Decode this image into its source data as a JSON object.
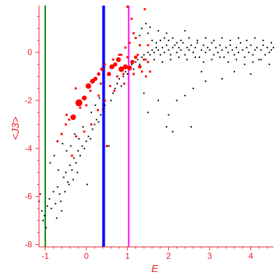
{
  "chart_data": {
    "type": "scatter",
    "xlabel": "E",
    "ylabel": "<J3>",
    "xlim": [
      -1.15,
      4.55
    ],
    "ylim": [
      -8.1,
      1.95
    ],
    "xticks": [
      -1,
      0,
      1,
      2,
      3,
      4
    ],
    "yticks": [
      -8,
      -6,
      -4,
      -2,
      0
    ],
    "grid": false,
    "colors": {
      "axis": "#e8222a",
      "black_points": "#000000",
      "red_points": "#ff0000",
      "line_green": "#008000",
      "line_blue": "#0000ff",
      "line_magenta": "#ff00ff"
    },
    "vertical_lines": [
      {
        "x": -1.0,
        "color": "#008000",
        "weight": "thin"
      },
      {
        "x": 0.42,
        "color": "#0000ff",
        "weight": "thick"
      },
      {
        "x": 1.03,
        "color": "#ff00ff",
        "weight": "thin"
      }
    ],
    "series": [
      {
        "points": [
          [
            -1.15,
            -6.2
          ],
          [
            -1.12,
            -5.9
          ],
          [
            -1.08,
            -6.6
          ],
          [
            -1.05,
            -7.0
          ],
          [
            -0.98,
            -7.3
          ],
          [
            -1.02,
            -6.8
          ],
          [
            -0.95,
            -6.4
          ],
          [
            -0.9,
            -6.1
          ],
          [
            -0.85,
            -6.5
          ],
          [
            -0.8,
            -5.8
          ],
          [
            -0.75,
            -6.3
          ],
          [
            -0.7,
            -5.6
          ],
          [
            -0.65,
            -5.9
          ],
          [
            -0.6,
            -6.6
          ],
          [
            -0.55,
            -5.2
          ],
          [
            -0.5,
            -5.0
          ],
          [
            -0.45,
            -5.4
          ],
          [
            -0.4,
            -4.7
          ],
          [
            -0.35,
            -4.9
          ],
          [
            -0.3,
            -4.4
          ],
          [
            -0.25,
            -4.6
          ],
          [
            -0.2,
            -4.1
          ],
          [
            -0.15,
            -4.3
          ],
          [
            -0.1,
            -3.9
          ],
          [
            -0.05,
            -4.0
          ],
          [
            0.0,
            -3.7
          ],
          [
            0.05,
            -3.5
          ],
          [
            0.1,
            -3.6
          ],
          [
            0.15,
            -3.2
          ],
          [
            0.2,
            -3.0
          ],
          [
            0.25,
            -2.8
          ],
          [
            0.3,
            -2.9
          ],
          [
            0.35,
            -2.6
          ],
          [
            0.4,
            -2.4
          ],
          [
            0.45,
            -2.2
          ],
          [
            -0.88,
            -4.6
          ],
          [
            -0.78,
            -4.3
          ],
          [
            -0.68,
            -4.9
          ],
          [
            -0.58,
            -3.8
          ],
          [
            -0.48,
            -4.1
          ],
          [
            -0.38,
            -3.9
          ],
          [
            -0.28,
            -3.4
          ],
          [
            -0.18,
            -3.6
          ],
          [
            -0.08,
            -3.1
          ],
          [
            0.02,
            -5.5
          ],
          [
            0.12,
            -2.5
          ],
          [
            0.22,
            -2.2
          ],
          [
            0.32,
            -1.9
          ],
          [
            -0.72,
            -6.9
          ],
          [
            -0.62,
            -6.2
          ],
          [
            -0.52,
            -5.8
          ],
          [
            -0.42,
            -5.5
          ],
          [
            -0.32,
            -5.3
          ],
          [
            -0.22,
            -5.0
          ],
          [
            0.55,
            -3.9
          ],
          [
            0.6,
            -2.0
          ],
          [
            0.65,
            -1.7
          ],
          [
            0.7,
            -1.5
          ],
          [
            0.75,
            -1.3
          ],
          [
            0.8,
            -1.1
          ],
          [
            0.85,
            -1.4
          ],
          [
            0.9,
            -1.0
          ],
          [
            0.95,
            -0.8
          ],
          [
            1.0,
            -0.9
          ],
          [
            1.05,
            -0.6
          ],
          [
            1.1,
            -0.5
          ],
          [
            1.15,
            -0.7
          ],
          [
            1.2,
            -0.4
          ],
          [
            1.25,
            -0.3
          ],
          [
            1.3,
            -0.5
          ],
          [
            1.35,
            -0.2
          ],
          [
            1.4,
            -0.1
          ],
          [
            1.45,
            -0.3
          ],
          [
            1.5,
            0.0
          ],
          [
            1.55,
            -0.1
          ],
          [
            1.6,
            0.1
          ],
          [
            1.65,
            0.0
          ],
          [
            1.7,
            0.2
          ],
          [
            1.75,
            0.1
          ],
          [
            1.8,
            -0.1
          ],
          [
            1.85,
            0.2
          ],
          [
            1.9,
            0.0
          ],
          [
            1.95,
            0.3
          ],
          [
            2.0,
            0.1
          ],
          [
            2.05,
            -0.1
          ],
          [
            2.1,
            0.2
          ],
          [
            2.15,
            0.3
          ],
          [
            2.2,
            0.0
          ],
          [
            2.25,
            0.2
          ],
          [
            2.3,
            0.1
          ],
          [
            2.35,
            0.4
          ],
          [
            2.4,
            -0.1
          ],
          [
            2.45,
            0.2
          ],
          [
            2.5,
            0.1
          ],
          [
            2.55,
            0.3
          ],
          [
            2.6,
            0.0
          ],
          [
            2.65,
            0.2
          ],
          [
            2.7,
            0.4
          ],
          [
            2.75,
            -0.2
          ],
          [
            2.8,
            0.1
          ],
          [
            2.85,
            0.3
          ],
          [
            2.9,
            0.0
          ],
          [
            2.95,
            0.2
          ],
          [
            3.0,
            0.1
          ],
          [
            3.05,
            0.4
          ],
          [
            3.1,
            -0.1
          ],
          [
            3.15,
            0.2
          ],
          [
            3.2,
            0.0
          ],
          [
            3.25,
            0.3
          ],
          [
            3.3,
            0.1
          ],
          [
            3.35,
            -0.2
          ],
          [
            3.4,
            0.2
          ],
          [
            3.45,
            0.0
          ],
          [
            3.5,
            0.3
          ],
          [
            3.55,
            0.1
          ],
          [
            3.6,
            -0.1
          ],
          [
            3.65,
            0.2
          ],
          [
            3.7,
            0.0
          ],
          [
            3.75,
            0.4
          ],
          [
            3.8,
            0.1
          ],
          [
            3.85,
            -0.2
          ],
          [
            3.9,
            0.2
          ],
          [
            3.95,
            0.0
          ],
          [
            4.0,
            0.3
          ],
          [
            4.05,
            -0.1
          ],
          [
            4.1,
            0.1
          ],
          [
            4.15,
            0.2
          ],
          [
            4.2,
            -0.3
          ],
          [
            4.25,
            0.1
          ],
          [
            4.3,
            0.3
          ],
          [
            4.35,
            -0.1
          ],
          [
            4.4,
            0.2
          ],
          [
            4.45,
            0.0
          ],
          [
            4.5,
            0.1
          ],
          [
            4.55,
            0.2
          ],
          [
            1.6,
            0.5
          ],
          [
            1.7,
            0.4
          ],
          [
            1.8,
            0.5
          ],
          [
            1.9,
            0.6
          ],
          [
            2.0,
            0.5
          ],
          [
            2.1,
            0.6
          ],
          [
            2.2,
            0.4
          ],
          [
            2.3,
            0.5
          ],
          [
            2.5,
            0.6
          ],
          [
            2.7,
            0.5
          ],
          [
            2.9,
            0.6
          ],
          [
            3.1,
            0.5
          ],
          [
            3.3,
            0.6
          ],
          [
            3.5,
            0.5
          ],
          [
            3.7,
            0.6
          ],
          [
            3.9,
            0.5
          ],
          [
            4.1,
            0.6
          ],
          [
            4.3,
            0.5
          ],
          [
            4.5,
            0.4
          ],
          [
            1.65,
            -0.3
          ],
          [
            1.85,
            -0.4
          ],
          [
            2.05,
            -0.3
          ],
          [
            2.25,
            -0.2
          ],
          [
            2.45,
            -0.3
          ],
          [
            2.65,
            -0.2
          ],
          [
            2.85,
            -0.4
          ],
          [
            3.05,
            -0.3
          ],
          [
            3.25,
            -0.2
          ],
          [
            3.45,
            -0.4
          ],
          [
            3.65,
            -0.3
          ],
          [
            3.85,
            -0.5
          ],
          [
            4.05,
            -0.4
          ],
          [
            4.25,
            -0.3
          ],
          [
            4.45,
            -0.5
          ],
          [
            1.3,
            0.7
          ],
          [
            1.5,
            0.8
          ],
          [
            1.75,
            0.9
          ],
          [
            1.45,
            1.2
          ],
          [
            1.55,
            1.05
          ],
          [
            1.35,
            1.0
          ],
          [
            1.95,
            0.8
          ],
          [
            2.4,
            0.9
          ],
          [
            2.0,
            -2.6
          ],
          [
            2.2,
            -2.0
          ],
          [
            2.4,
            -1.8
          ],
          [
            2.6,
            -1.5
          ],
          [
            2.9,
            -1.2
          ],
          [
            2.1,
            -3.3
          ],
          [
            2.55,
            -3.1
          ],
          [
            1.95,
            -3.1
          ],
          [
            3.3,
            -1.1
          ],
          [
            3.6,
            -0.8
          ],
          [
            4.0,
            -0.9
          ],
          [
            1.4,
            -1.7
          ],
          [
            1.75,
            -2.0
          ],
          [
            2.8,
            -0.8
          ],
          [
            1.5,
            -2.5
          ]
        ]
      },
      {
        "points": [
          [
            -0.32,
            -2.7,
            7
          ],
          [
            -0.18,
            -2.1,
            9
          ],
          [
            -0.05,
            -1.9,
            6
          ],
          [
            0.05,
            -1.4,
            7
          ],
          [
            0.15,
            -1.2,
            6
          ],
          [
            0.22,
            -1.1,
            5
          ],
          [
            0.3,
            -0.9,
            4
          ],
          [
            0.38,
            -0.7,
            4
          ],
          [
            0.55,
            -0.9,
            5
          ],
          [
            0.62,
            -0.6,
            6
          ],
          [
            0.7,
            -0.5,
            5
          ],
          [
            0.78,
            -0.3,
            6
          ],
          [
            0.85,
            -0.7,
            7
          ],
          [
            0.95,
            -0.6,
            6
          ],
          [
            1.05,
            -0.65,
            6
          ],
          [
            1.12,
            -0.4,
            5
          ],
          [
            1.2,
            -0.2,
            4
          ],
          [
            1.3,
            -0.6,
            4
          ],
          [
            1.4,
            -0.3,
            3
          ],
          [
            1.5,
            -0.4,
            3
          ],
          [
            -0.6,
            -3.4,
            3
          ],
          [
            -0.5,
            -3.0,
            3
          ],
          [
            -0.42,
            -2.8,
            3
          ],
          [
            -0.7,
            -3.7,
            3
          ],
          [
            -0.26,
            -1.5,
            3
          ],
          [
            -0.15,
            -2.3,
            3
          ],
          [
            0.0,
            -2.2,
            3
          ],
          [
            0.1,
            -1.6,
            3
          ],
          [
            0.45,
            -0.5,
            3
          ],
          [
            0.65,
            -0.3,
            3
          ],
          [
            0.75,
            -1.0,
            3
          ],
          [
            0.9,
            -0.9,
            3
          ],
          [
            1.0,
            -0.2,
            3
          ],
          [
            1.15,
            -0.9,
            3
          ],
          [
            1.25,
            -0.1,
            3
          ],
          [
            1.35,
            -0.8,
            3
          ],
          [
            1.45,
            -1.0,
            3
          ],
          [
            1.55,
            -0.8,
            3
          ],
          [
            1.1,
            1.4,
            3
          ],
          [
            1.15,
            0.8,
            3
          ],
          [
            1.05,
            0.4,
            3
          ],
          [
            0.95,
            0.2,
            3
          ],
          [
            0.85,
            -0.1,
            3
          ],
          [
            1.0,
            1.9,
            3
          ],
          [
            1.3,
            0.3,
            3
          ],
          [
            0.45,
            -2.0,
            3
          ],
          [
            0.5,
            -3.9,
            3
          ],
          [
            0.3,
            -1.8,
            3
          ],
          [
            -0.05,
            -3.3,
            3
          ],
          [
            -0.35,
            -4.3,
            3
          ],
          [
            -0.25,
            -3.5,
            3
          ],
          [
            0.12,
            -3.0,
            3
          ],
          [
            0.28,
            -2.4,
            3
          ],
          [
            -0.48,
            -2.6,
            3
          ],
          [
            0.58,
            -1.4,
            3
          ],
          [
            0.68,
            -1.6,
            3
          ],
          [
            1.42,
            1.8,
            3
          ],
          [
            1.2,
            0.6,
            3
          ],
          [
            1.5,
            0.3,
            3
          ],
          [
            0.92,
            -1.3,
            3
          ],
          [
            0.35,
            -1.3,
            3
          ],
          [
            0.8,
            -0.1,
            3
          ]
        ]
      }
    ]
  }
}
